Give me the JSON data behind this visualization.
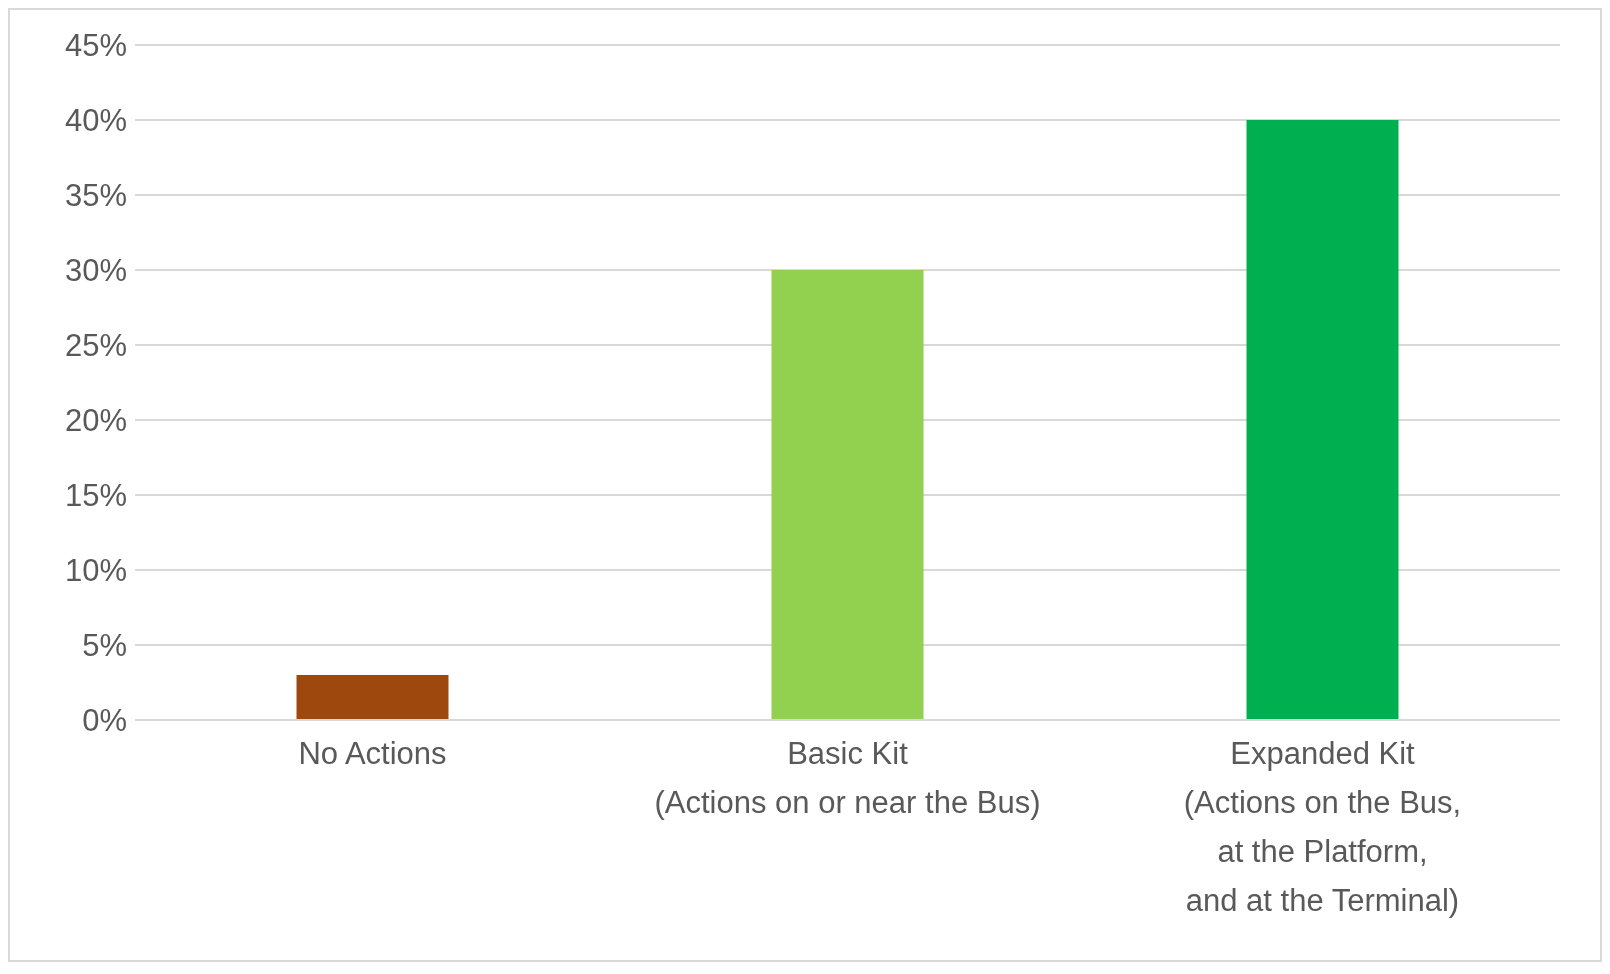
{
  "chart_data": {
    "type": "bar",
    "categories": [
      "No Actions",
      "Basic Kit\n(Actions on or near the Bus)",
      "Expanded Kit\n(Actions on the Bus,\nat the Platform,\nand at the Terminal)"
    ],
    "values": [
      3,
      30,
      40
    ],
    "colors": [
      "#9e480e",
      "#92d050",
      "#00b050"
    ],
    "ylim": [
      0,
      45
    ],
    "yticks": [
      {
        "value": 0,
        "label": "0%"
      },
      {
        "value": 5,
        "label": "5%"
      },
      {
        "value": 10,
        "label": "10%"
      },
      {
        "value": 15,
        "label": "15%"
      },
      {
        "value": 20,
        "label": "20%"
      },
      {
        "value": 25,
        "label": "25%"
      },
      {
        "value": 30,
        "label": "30%"
      },
      {
        "value": 35,
        "label": "35%"
      },
      {
        "value": 40,
        "label": "40%"
      },
      {
        "value": 45,
        "label": "45%"
      }
    ],
    "grid": "y"
  }
}
